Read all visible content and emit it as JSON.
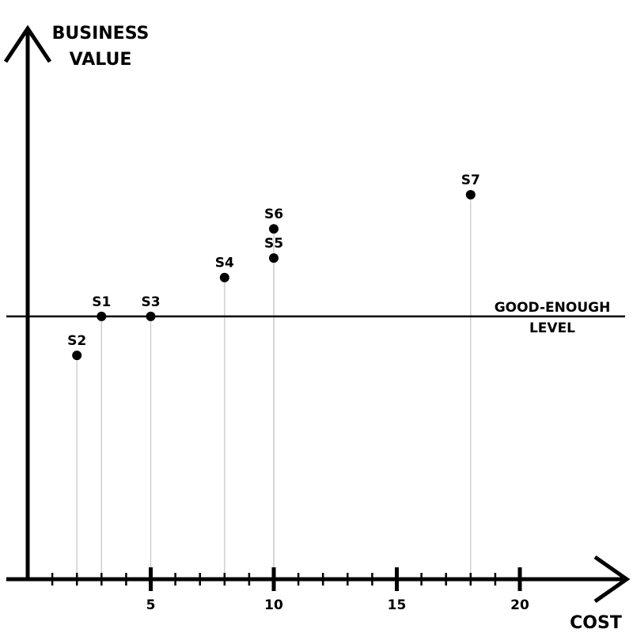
{
  "chart_data": {
    "type": "scatter",
    "ylabel_lines": [
      "BUSINESS",
      "VALUE"
    ],
    "xlabel": "COST",
    "xlim": [
      0,
      24
    ],
    "xticks_major": [
      5,
      10,
      15,
      20
    ],
    "xticks_minor": [
      1,
      2,
      3,
      4,
      6,
      7,
      8,
      9,
      11,
      12,
      13,
      14,
      16,
      17,
      18,
      19
    ],
    "ylim": [
      0,
      11.5
    ],
    "grid": false,
    "reference_line": {
      "y": 5.4,
      "label_lines": [
        "GOOD-ENOUGH",
        "LEVEL"
      ]
    },
    "points": [
      {
        "label": "S1",
        "x": 3,
        "y": 5.4
      },
      {
        "label": "S2",
        "x": 2,
        "y": 4.6
      },
      {
        "label": "S3",
        "x": 5,
        "y": 5.4
      },
      {
        "label": "S4",
        "x": 8,
        "y": 6.2
      },
      {
        "label": "S5",
        "x": 10,
        "y": 6.6
      },
      {
        "label": "S6",
        "x": 10,
        "y": 7.2
      },
      {
        "label": "S7",
        "x": 18,
        "y": 7.9
      }
    ]
  }
}
